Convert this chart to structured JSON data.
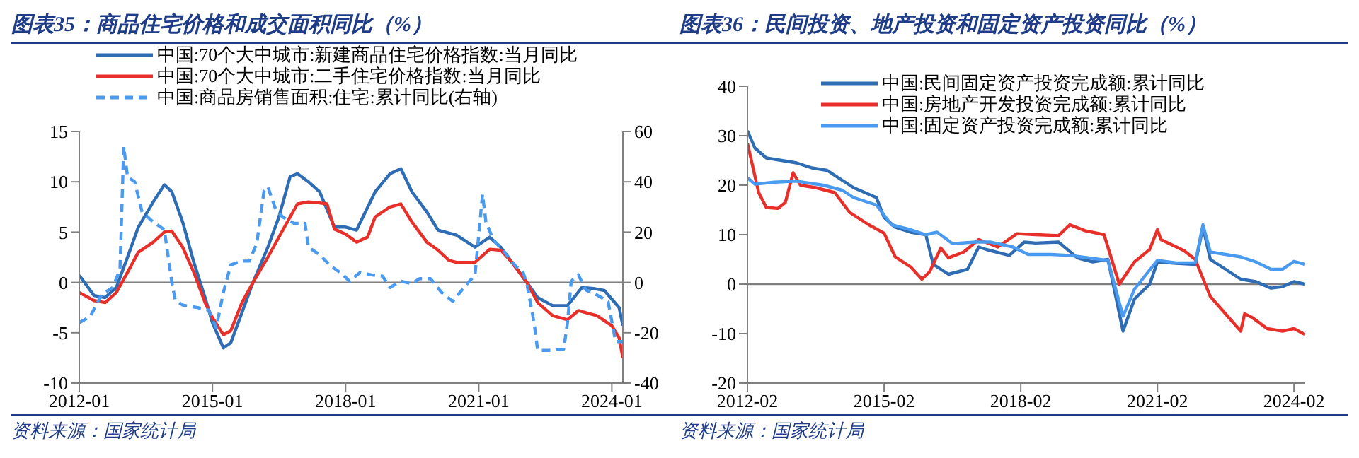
{
  "chart_data": [
    {
      "type": "line",
      "title": "图表35：商品住宅价格和成交面积同比（%）",
      "annotations": [
        "资料来源：国家统计局"
      ],
      "legend": "top",
      "xlim": [
        "2012-01",
        "2024-04"
      ],
      "xticks": [
        "2012-01",
        "2015-01",
        "2018-01",
        "2021-01",
        "2024-01"
      ],
      "ylim": [
        -10,
        15
      ],
      "yticks": [
        -10,
        -5,
        0,
        5,
        10,
        15
      ],
      "y2lim": [
        -40,
        60
      ],
      "y2ticks": [
        -40,
        -20,
        0,
        20,
        40,
        60
      ],
      "ref_lines": [
        {
          "axis": "y",
          "value": 0,
          "color": "#808080"
        }
      ],
      "series": [
        {
          "name": "中国:70个大中城市:新建商品住宅价格指数:当月同比",
          "color": "#2e6db4",
          "x": [
            "2012-01",
            "2012-05",
            "2012-08",
            "2012-11",
            "2013-02",
            "2013-05",
            "2013-09",
            "2013-12",
            "2014-02",
            "2014-05",
            "2014-08",
            "2014-11",
            "2015-01",
            "2015-04",
            "2015-06",
            "2015-09",
            "2015-12",
            "2016-04",
            "2016-07",
            "2016-10",
            "2016-12",
            "2017-03",
            "2017-06",
            "2017-10",
            "2018-01",
            "2018-04",
            "2018-09",
            "2019-01",
            "2019-04",
            "2019-07",
            "2019-11",
            "2020-02",
            "2020-07",
            "2020-12",
            "2021-04",
            "2021-07",
            "2021-10",
            "2022-02",
            "2022-05",
            "2022-09",
            "2023-01",
            "2023-05",
            "2023-08",
            "2023-11",
            "2024-03",
            "2024-04"
          ],
          "values": [
            0.7,
            -1.3,
            -1.5,
            -0.5,
            2.5,
            5.5,
            8,
            9.7,
            9,
            6,
            2,
            -1.5,
            -4,
            -6.5,
            -6,
            -3,
            0,
            3.5,
            6.5,
            10.5,
            10.8,
            10,
            9,
            5.5,
            5.5,
            5.2,
            9,
            10.8,
            11.3,
            9,
            7,
            5.2,
            4.7,
            3.5,
            4.5,
            3.5,
            2,
            0,
            -1.5,
            -2.3,
            -2.3,
            -0.5,
            -0.6,
            -0.8,
            -2.5,
            -4.3
          ]
        },
        {
          "name": "中国:70个大中城市:二手住宅价格指数:当月同比",
          "color": "#e8302a",
          "x": [
            "2012-01",
            "2012-05",
            "2012-08",
            "2012-11",
            "2013-02",
            "2013-05",
            "2013-09",
            "2013-12",
            "2014-02",
            "2014-05",
            "2014-08",
            "2014-11",
            "2015-01",
            "2015-04",
            "2015-06",
            "2015-09",
            "2015-12",
            "2016-04",
            "2016-07",
            "2016-10",
            "2016-12",
            "2017-03",
            "2017-06",
            "2017-08",
            "2017-10",
            "2018-01",
            "2018-04",
            "2018-07",
            "2018-09",
            "2019-01",
            "2019-04",
            "2019-07",
            "2019-11",
            "2020-02",
            "2020-05",
            "2020-07",
            "2020-12",
            "2021-04",
            "2021-07",
            "2021-10",
            "2022-02",
            "2022-05",
            "2022-09",
            "2023-01",
            "2023-04",
            "2023-06",
            "2023-09",
            "2024-01",
            "2024-03",
            "2024-04"
          ],
          "values": [
            -1,
            -1.8,
            -2,
            -1,
            1,
            3,
            4,
            5,
            5.1,
            3.5,
            1,
            -2,
            -3.5,
            -5.2,
            -4.8,
            -2,
            0,
            2.5,
            4.5,
            6.5,
            7.8,
            8,
            7.9,
            7.8,
            5.3,
            4.8,
            4,
            4.5,
            6.5,
            7.5,
            7.8,
            6,
            4,
            3.2,
            2.2,
            2,
            2,
            3.3,
            3.2,
            2,
            0,
            -2,
            -3.3,
            -3.7,
            -2.8,
            -3,
            -3.3,
            -4.3,
            -5.5,
            -7.5
          ]
        },
        {
          "name": "中国:商品房销售面积:住宅:累计同比(右轴)",
          "color": "#4a9af0",
          "axis": "y2",
          "line_style": "dashed",
          "x": [
            "2012-01",
            "2012-04",
            "2012-07",
            "2012-10",
            "2012-12",
            "2013-01",
            "2013-02",
            "2013-04",
            "2013-06",
            "2013-09",
            "2013-12",
            "2014-02",
            "2014-03",
            "2014-05",
            "2014-09",
            "2014-12",
            "2015-02",
            "2015-04",
            "2015-06",
            "2015-09",
            "2015-11",
            "2016-01",
            "2016-03",
            "2016-04",
            "2016-06",
            "2016-08",
            "2016-11",
            "2017-02",
            "2017-03",
            "2017-06",
            "2017-09",
            "2017-12",
            "2018-02",
            "2018-05",
            "2018-08",
            "2018-11",
            "2019-01",
            "2019-04",
            "2019-07",
            "2019-09",
            "2019-12",
            "2020-03",
            "2020-06",
            "2020-09",
            "2020-12",
            "2021-02",
            "2021-03",
            "2021-05",
            "2021-08",
            "2021-11",
            "2022-01",
            "2022-02",
            "2022-04",
            "2022-05",
            "2022-08",
            "2022-12",
            "2023-01",
            "2023-02",
            "2023-04",
            "2023-06",
            "2023-09",
            "2023-12",
            "2024-02",
            "2024-04"
          ],
          "values": [
            -16,
            -13.5,
            -5,
            -2,
            5,
            54,
            42,
            40,
            28,
            24,
            21,
            0,
            -7,
            -9,
            -10,
            -11,
            -18,
            -4,
            7,
            8.5,
            8.5,
            15.5,
            36.5,
            38,
            29.5,
            26,
            23.5,
            23.5,
            14,
            11,
            6.5,
            3.5,
            0.5,
            4,
            3,
            2.5,
            -2,
            0.5,
            -0.5,
            1.5,
            1.5,
            -4,
            -7.5,
            -2,
            3,
            35,
            24,
            17,
            12,
            6.5,
            4,
            -0.5,
            -16,
            -27,
            -27,
            -26.5,
            -16,
            0.5,
            3,
            -3,
            -5,
            -7.5,
            -23.5,
            -23.5
          ]
        }
      ]
    },
    {
      "type": "line",
      "title": "图表36：民间投资、地产投资和固定资产投资同比（%）",
      "annotations": [
        "资料来源：国家统计局"
      ],
      "legend": "top left",
      "xlim": [
        "2012-02",
        "2024-05"
      ],
      "xticks": [
        "2012-02",
        "2015-02",
        "2018-02",
        "2021-02",
        "2024-02"
      ],
      "ylim": [
        -20,
        40
      ],
      "yticks": [
        -20,
        -10,
        0,
        10,
        20,
        30,
        40
      ],
      "ref_lines": [
        {
          "axis": "y",
          "value": 0,
          "color": "#808080"
        }
      ],
      "series": [
        {
          "name": "中国:民间固定资产投资完成额:累计同比",
          "color": "#2e6db4",
          "x": [
            "2012-02",
            "2012-04",
            "2012-07",
            "2012-11",
            "2013-03",
            "2013-07",
            "2013-11",
            "2014-03",
            "2014-06",
            "2014-12",
            "2015-02",
            "2015-05",
            "2015-09",
            "2016-01",
            "2016-03",
            "2016-07",
            "2016-12",
            "2017-03",
            "2017-05",
            "2017-11",
            "2018-03",
            "2018-06",
            "2018-12",
            "2019-05",
            "2019-09",
            "2020-01",
            "2020-05",
            "2020-08",
            "2020-12",
            "2021-02",
            "2021-07",
            "2021-12",
            "2022-02",
            "2022-04",
            "2022-08",
            "2022-12",
            "2023-04",
            "2023-08",
            "2023-11",
            "2024-02",
            "2024-05"
          ],
          "values": [
            31,
            27.5,
            25.5,
            25,
            24.5,
            23.5,
            23,
            21,
            19.5,
            17.5,
            13.5,
            11.5,
            10.5,
            10,
            4,
            2,
            3,
            7.5,
            7,
            5.8,
            8.5,
            8.3,
            8.5,
            5.3,
            4.5,
            5,
            -9.5,
            -3,
            0,
            4.5,
            4.2,
            4,
            11.5,
            5,
            3,
            1,
            0.5,
            -0.8,
            -0.5,
            0.5,
            0
          ]
        },
        {
          "name": "中国:房地产开发投资完成额:累计同比",
          "color": "#e8302a",
          "x": [
            "2012-02",
            "2012-05",
            "2012-07",
            "2012-10",
            "2012-12",
            "2013-02",
            "2013-04",
            "2013-08",
            "2014-01",
            "2014-05",
            "2014-10",
            "2015-02",
            "2015-05",
            "2015-09",
            "2015-12",
            "2016-02",
            "2016-05",
            "2016-07",
            "2016-11",
            "2017-03",
            "2017-08",
            "2018-01",
            "2018-06",
            "2018-12",
            "2019-03",
            "2019-07",
            "2019-12",
            "2020-04",
            "2020-08",
            "2020-12",
            "2021-02",
            "2021-03",
            "2021-09",
            "2021-12",
            "2022-04",
            "2022-08",
            "2022-12",
            "2023-01",
            "2023-03",
            "2023-07",
            "2023-11",
            "2024-02",
            "2024-05"
          ],
          "values": [
            28.5,
            18.5,
            15.5,
            15.3,
            16.5,
            22.5,
            20,
            19.5,
            18.5,
            14.5,
            12,
            10.3,
            5.5,
            3.5,
            1,
            2.5,
            7.3,
            5.3,
            6.5,
            9,
            7.5,
            10.2,
            10,
            9.8,
            12,
            10.8,
            10,
            0,
            4.5,
            7,
            11,
            9,
            6.8,
            5,
            -2.5,
            -6,
            -9.5,
            -6,
            -6.7,
            -9,
            -9.5,
            -9,
            -10.2
          ]
        },
        {
          "name": "中国:固定资产投资完成额:累计同比",
          "color": "#4a9af0",
          "x": [
            "2012-02",
            "2012-04",
            "2012-09",
            "2013-03",
            "2013-10",
            "2014-03",
            "2014-06",
            "2014-12",
            "2015-04",
            "2015-09",
            "2016-01",
            "2016-04",
            "2016-08",
            "2017-02",
            "2017-06",
            "2017-12",
            "2018-04",
            "2018-10",
            "2019-03",
            "2019-07",
            "2020-01",
            "2020-05",
            "2020-08",
            "2021-02",
            "2021-07",
            "2021-12",
            "2022-02",
            "2022-04",
            "2022-08",
            "2022-12",
            "2023-04",
            "2023-08",
            "2023-11",
            "2024-02",
            "2024-05"
          ],
          "values": [
            21.5,
            20.2,
            20.6,
            20.8,
            20,
            19,
            17.5,
            16,
            12,
            11,
            10,
            10.5,
            8.2,
            8.5,
            8.5,
            7.5,
            6,
            6,
            5.8,
            5.4,
            4.8,
            -6.5,
            -1,
            4.8,
            4.3,
            4.3,
            12,
            6.5,
            6,
            5.5,
            4.5,
            3,
            3,
            4.6,
            4
          ]
        }
      ]
    }
  ]
}
